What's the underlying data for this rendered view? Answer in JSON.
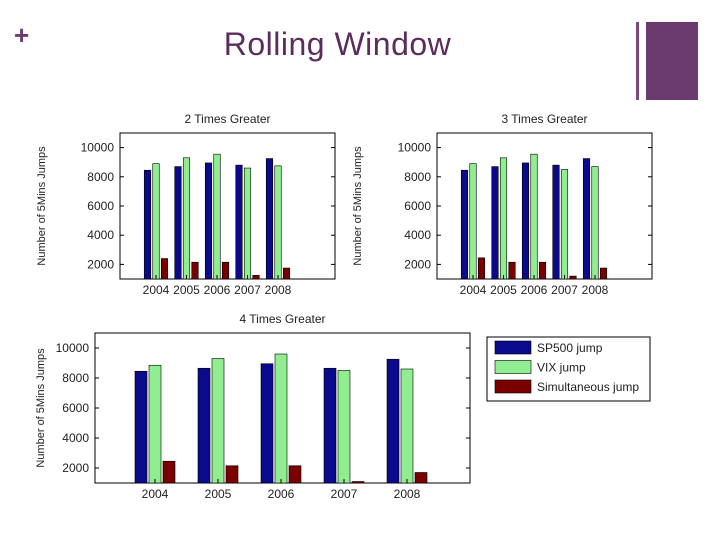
{
  "slide": {
    "plus_symbol": "+",
    "title": "Rolling Window"
  },
  "colors": {
    "sp500": "#0a0a8c",
    "vix": "#90ee90",
    "simultaneous": "#7a0000",
    "accent": "#6b3a6e"
  },
  "chart_data": [
    {
      "type": "bar",
      "title": "2 Times Greater",
      "xlabel": "",
      "ylabel": "Number of 5Mins Jumps",
      "categories": [
        "2004",
        "2005",
        "2006",
        "2007",
        "2008"
      ],
      "ylim": [
        1000,
        11000
      ],
      "yticks": [
        2000,
        4000,
        6000,
        8000,
        10000
      ],
      "yticklabels": [
        "2000",
        "4000",
        "6000",
        "8000",
        "10000"
      ],
      "series": [
        {
          "name": "SP500 jump",
          "values": [
            8450,
            8700,
            8950,
            8800,
            9250
          ]
        },
        {
          "name": "VIX jump",
          "values": [
            8900,
            9300,
            9550,
            8600,
            8750
          ]
        },
        {
          "name": "Simultaneous jump",
          "values": [
            2400,
            2150,
            2150,
            1250,
            1750
          ]
        }
      ]
    },
    {
      "type": "bar",
      "title": "3 Times Greater",
      "xlabel": "",
      "ylabel": "Number of 5Mins Jumps",
      "categories": [
        "2004",
        "2005",
        "2006",
        "2007",
        "2008"
      ],
      "ylim": [
        1000,
        11000
      ],
      "yticks": [
        2000,
        4000,
        6000,
        8000,
        10000
      ],
      "yticklabels": [
        "2000",
        "4000",
        "6000",
        "8000",
        "10000"
      ],
      "series": [
        {
          "name": "SP500 jump",
          "values": [
            8450,
            8700,
            8950,
            8800,
            9250
          ]
        },
        {
          "name": "VIX jump",
          "values": [
            8900,
            9300,
            9550,
            8500,
            8700
          ]
        },
        {
          "name": "Simultaneous jump",
          "values": [
            2450,
            2150,
            2150,
            1200,
            1750
          ]
        }
      ]
    },
    {
      "type": "bar",
      "title": "4 Times Greater",
      "xlabel": "",
      "ylabel": "Number of 5Mins Jumps",
      "categories": [
        "2004",
        "2005",
        "2006",
        "2007",
        "2008"
      ],
      "ylim": [
        1000,
        11000
      ],
      "yticks": [
        2000,
        4000,
        6000,
        8000,
        10000
      ],
      "yticklabels": [
        "2000",
        "4000",
        "6000",
        "8000",
        "10000"
      ],
      "series": [
        {
          "name": "SP500 jump",
          "values": [
            8450,
            8650,
            8950,
            8650,
            9250
          ]
        },
        {
          "name": "VIX jump",
          "values": [
            8850,
            9300,
            9600,
            8500,
            8600
          ]
        },
        {
          "name": "Simultaneous jump",
          "values": [
            2450,
            2150,
            2150,
            1100,
            1700
          ]
        }
      ]
    }
  ],
  "legend": {
    "entries": [
      "SP500 jump",
      "VIX jump",
      "Simultaneous jump"
    ]
  }
}
